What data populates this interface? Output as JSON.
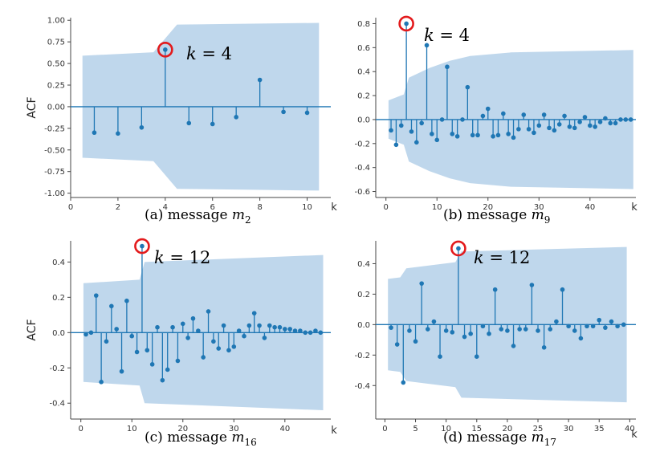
{
  "style": {
    "stem_color": "#1f77b4",
    "band_color": "#a9c9e6",
    "highlight_color": "#e31a1c"
  },
  "chart_data": [
    {
      "type": "stem",
      "ylabel": "ACF",
      "xlabel": "k",
      "caption_prefix": "(a) message ",
      "caption_var": "m",
      "caption_sub": "2",
      "annotation": {
        "var": "k",
        "eq": "= 4"
      },
      "highlight_lag": 4,
      "xlim": [
        0,
        11
      ],
      "ylim": [
        -1.05,
        1.03
      ],
      "xticks": [
        0,
        2,
        4,
        6,
        8,
        10
      ],
      "yticks": [
        -1.0,
        -0.75,
        -0.5,
        -0.25,
        0.0,
        0.25,
        0.5,
        0.75,
        1.0
      ],
      "ytick_decimals": 2,
      "x": [
        1,
        2,
        3,
        4,
        5,
        6,
        7,
        8,
        9,
        10
      ],
      "values": [
        -0.3,
        -0.31,
        -0.24,
        0.66,
        -0.19,
        -0.2,
        -0.12,
        0.31,
        -0.06,
        -0.07
      ],
      "confidence_band": {
        "x": [
          0.5,
          3.5,
          4.5,
          10.5
        ],
        "upper": [
          0.59,
          0.63,
          0.95,
          0.97
        ]
      }
    },
    {
      "type": "stem",
      "ylabel": "",
      "xlabel": "k",
      "caption_prefix": "(b) message ",
      "caption_var": "m",
      "caption_sub": "9",
      "annotation": {
        "var": "k",
        "eq": "= 4"
      },
      "highlight_lag": 4,
      "xlim": [
        -2,
        49
      ],
      "ylim": [
        -0.65,
        0.85
      ],
      "xticks": [
        0,
        10,
        20,
        30,
        40
      ],
      "yticks": [
        -0.6,
        -0.4,
        -0.2,
        0.0,
        0.2,
        0.4,
        0.6,
        0.8
      ],
      "ytick_decimals": 1,
      "x": [
        1,
        2,
        3,
        4,
        5,
        6,
        7,
        8,
        9,
        10,
        11,
        12,
        13,
        14,
        15,
        16,
        17,
        18,
        19,
        20,
        21,
        22,
        23,
        24,
        25,
        26,
        27,
        28,
        29,
        30,
        31,
        32,
        33,
        34,
        35,
        36,
        37,
        38,
        39,
        40,
        41,
        42,
        43,
        44,
        45,
        46,
        47,
        48
      ],
      "values": [
        -0.09,
        -0.21,
        -0.05,
        0.8,
        -0.1,
        -0.19,
        -0.03,
        0.62,
        -0.12,
        -0.17,
        0.0,
        0.44,
        -0.12,
        -0.14,
        0.0,
        0.27,
        -0.13,
        -0.13,
        0.03,
        0.09,
        -0.14,
        -0.13,
        0.05,
        -0.12,
        -0.15,
        -0.08,
        0.04,
        -0.08,
        -0.11,
        -0.05,
        0.04,
        -0.07,
        -0.09,
        -0.04,
        0.03,
        -0.06,
        -0.07,
        -0.02,
        0.02,
        -0.05,
        -0.06,
        -0.02,
        0.01,
        -0.03,
        -0.03,
        0.0,
        0.0,
        0.0
      ],
      "confidence_band": {
        "x": [
          0.5,
          3.5,
          4.5,
          8.5,
          12.5,
          16.5,
          24.5,
          48.5
        ],
        "upper": [
          0.16,
          0.21,
          0.35,
          0.43,
          0.49,
          0.53,
          0.56,
          0.58
        ]
      }
    },
    {
      "type": "stem",
      "ylabel": "ACF",
      "xlabel": "k",
      "caption_prefix": "(c) message ",
      "caption_var": "m",
      "caption_sub": "16",
      "annotation": {
        "var": "k",
        "eq": "= 12"
      },
      "highlight_lag": 12,
      "xlim": [
        -2,
        49
      ],
      "ylim": [
        -0.49,
        0.52
      ],
      "xticks": [
        0,
        10,
        20,
        30,
        40
      ],
      "yticks": [
        -0.4,
        -0.2,
        0.0,
        0.2,
        0.4
      ],
      "ytick_decimals": 1,
      "x": [
        1,
        2,
        3,
        4,
        5,
        6,
        7,
        8,
        9,
        10,
        11,
        12,
        13,
        14,
        15,
        16,
        17,
        18,
        19,
        20,
        21,
        22,
        23,
        24,
        25,
        26,
        27,
        28,
        29,
        30,
        31,
        32,
        33,
        34,
        35,
        36,
        37,
        38,
        39,
        40,
        41,
        42,
        43,
        44,
        45,
        46,
        47
      ],
      "values": [
        -0.01,
        0.0,
        0.21,
        -0.28,
        -0.05,
        0.15,
        0.02,
        -0.22,
        0.18,
        -0.02,
        -0.11,
        0.49,
        -0.1,
        -0.18,
        0.03,
        -0.27,
        -0.21,
        0.03,
        -0.16,
        0.05,
        -0.03,
        0.08,
        0.01,
        -0.14,
        0.12,
        -0.05,
        -0.09,
        0.04,
        -0.1,
        -0.08,
        0.01,
        -0.02,
        0.04,
        0.11,
        0.04,
        -0.03,
        0.04,
        0.03,
        0.03,
        0.02,
        0.02,
        0.01,
        0.01,
        0.0,
        0.0,
        0.01,
        0.0
      ],
      "confidence_band": {
        "x": [
          0.5,
          11.5,
          12.5,
          47.5
        ],
        "upper": [
          0.28,
          0.3,
          0.4,
          0.44
        ]
      }
    },
    {
      "type": "stem",
      "ylabel": "",
      "xlabel": "k",
      "caption_prefix": "(d) message ",
      "caption_var": "m",
      "caption_sub": "17",
      "annotation": {
        "var": "k",
        "eq": "= 12"
      },
      "highlight_lag": 12,
      "xlim": [
        -1.5,
        41
      ],
      "ylim": [
        -0.62,
        0.55
      ],
      "xticks": [
        0,
        5,
        10,
        15,
        20,
        25,
        30,
        35,
        40
      ],
      "yticks": [
        -0.4,
        -0.2,
        0.0,
        0.2,
        0.4
      ],
      "ytick_decimals": 1,
      "x": [
        1,
        2,
        3,
        4,
        5,
        6,
        7,
        8,
        9,
        10,
        11,
        12,
        13,
        14,
        15,
        16,
        17,
        18,
        19,
        20,
        21,
        22,
        23,
        24,
        25,
        26,
        27,
        28,
        29,
        30,
        31,
        32,
        33,
        34,
        35,
        36,
        37,
        38,
        39
      ],
      "values": [
        -0.02,
        -0.13,
        -0.38,
        -0.04,
        -0.11,
        0.27,
        -0.03,
        0.02,
        -0.21,
        -0.04,
        -0.05,
        0.5,
        -0.08,
        -0.06,
        -0.21,
        -0.01,
        -0.06,
        0.23,
        -0.03,
        -0.04,
        -0.14,
        -0.03,
        -0.03,
        0.26,
        -0.04,
        -0.15,
        -0.03,
        0.02,
        0.23,
        -0.01,
        -0.04,
        -0.09,
        -0.01,
        -0.01,
        0.03,
        -0.02,
        0.02,
        -0.01,
        0.0
      ],
      "confidence_band": {
        "x": [
          0.5,
          2.5,
          3.5,
          11.5,
          12.5,
          39.5
        ],
        "upper": [
          0.3,
          0.31,
          0.37,
          0.41,
          0.48,
          0.51
        ]
      }
    }
  ]
}
